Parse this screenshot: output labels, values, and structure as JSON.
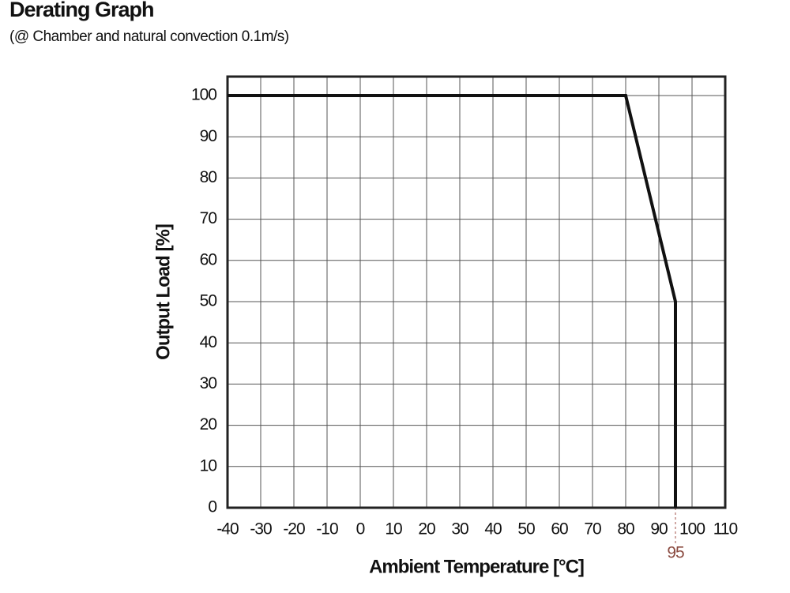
{
  "chart_data": {
    "type": "line",
    "title": "Derating Graph",
    "subtitle": "(@ Chamber and natural convection 0.1m/s)",
    "x_label": "Ambient Temperature [°C]",
    "y_label": "Output Load [%]",
    "x": [
      -40,
      80,
      95,
      95
    ],
    "values": [
      100,
      100,
      50,
      0
    ],
    "color": "#111111",
    "xlim": [
      -40,
      110
    ],
    "ylim": [
      0,
      104.6
    ],
    "xticks": [
      -40,
      -30,
      -20,
      -10,
      0,
      10,
      20,
      30,
      40,
      50,
      60,
      70,
      80,
      90,
      100,
      110
    ],
    "yticks": [
      0,
      10,
      20,
      30,
      40,
      50,
      60,
      70,
      80,
      90,
      100
    ],
    "extra_xticks": [
      95
    ],
    "grid": true
  }
}
